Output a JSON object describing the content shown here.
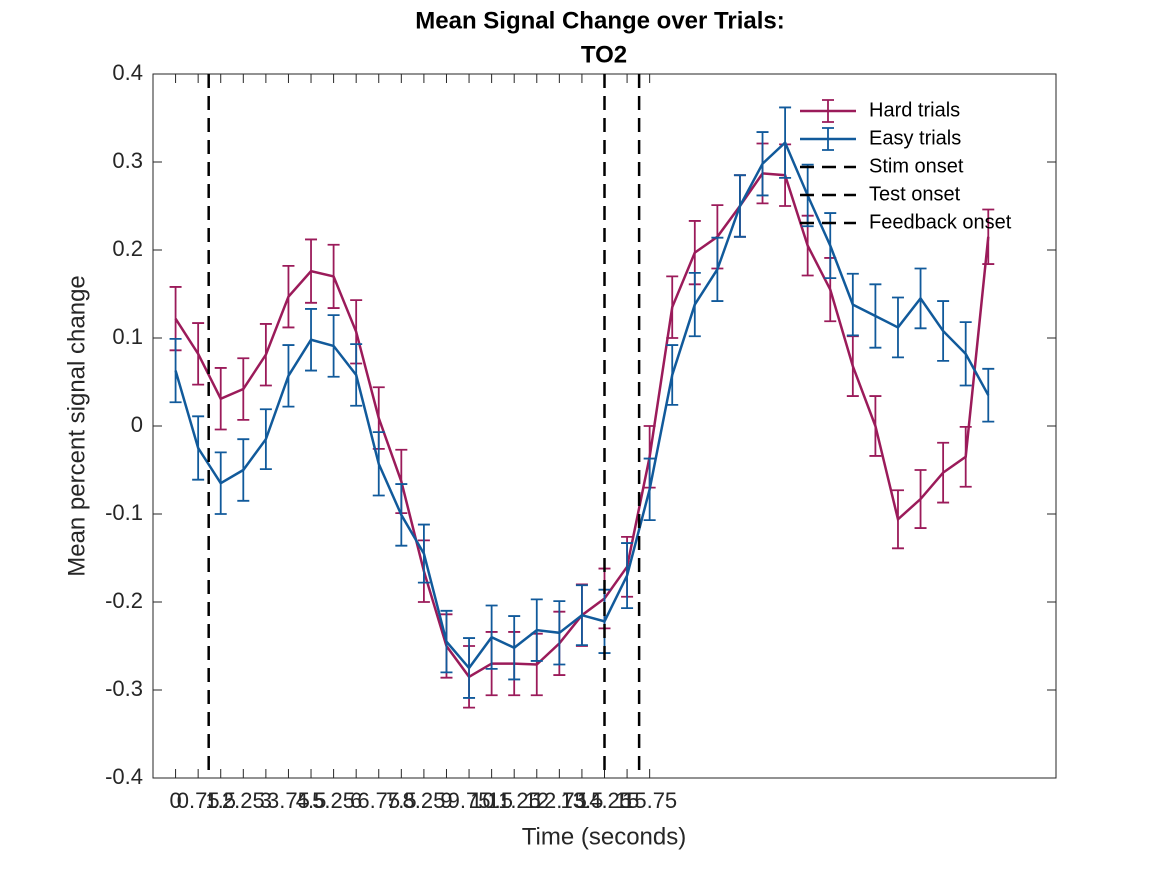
{
  "chart_data": {
    "type": "line",
    "title": [
      "Mean Signal Change over Trials:",
      "TO2"
    ],
    "x_label": "Time (seconds)",
    "y_label": "Mean percent signal change",
    "x": [
      0,
      0.75,
      1.5,
      2.25,
      3,
      3.75,
      4.5,
      5.25,
      6,
      6.75,
      7.5,
      8.25,
      9,
      9.75,
      10.5,
      11.25,
      12,
      12.75,
      13.5,
      14.25,
      15,
      15.75,
      16.5,
      17.25,
      18,
      18.75,
      19.5,
      20.25,
      21,
      21.75,
      22.5,
      23.25,
      24,
      24.75,
      25.5,
      26.25,
      27
    ],
    "series": [
      {
        "name": "Hard trials",
        "color": "#9b1b5a",
        "values": [
          0.122,
          0.082,
          0.031,
          0.042,
          0.081,
          0.147,
          0.176,
          0.17,
          0.107,
          0.009,
          -0.063,
          -0.165,
          -0.25,
          -0.285,
          -0.27,
          -0.27,
          -0.271,
          -0.247,
          -0.215,
          -0.196,
          -0.16,
          -0.035,
          0.135,
          0.197,
          0.215,
          0.25,
          0.287,
          0.285,
          0.205,
          0.155,
          0.068,
          0.0,
          -0.106,
          -0.083,
          -0.053,
          -0.035,
          0.215
        ],
        "errors": [
          0.036,
          0.035,
          0.035,
          0.035,
          0.035,
          0.035,
          0.036,
          0.036,
          0.036,
          0.035,
          0.036,
          0.035,
          0.036,
          0.035,
          0.036,
          0.036,
          0.035,
          0.036,
          0.035,
          0.034,
          0.034,
          0.035,
          0.035,
          0.036,
          0.036,
          0.035,
          0.034,
          0.035,
          0.034,
          0.036,
          0.034,
          0.034,
          0.033,
          0.033,
          0.034,
          0.034,
          0.031
        ]
      },
      {
        "name": "Easy trials",
        "color": "#115a9b",
        "values": [
          0.063,
          -0.025,
          -0.065,
          -0.05,
          -0.015,
          0.057,
          0.098,
          0.091,
          0.058,
          -0.043,
          -0.101,
          -0.145,
          -0.245,
          -0.275,
          -0.24,
          -0.252,
          -0.232,
          -0.235,
          -0.215,
          -0.222,
          -0.17,
          -0.072,
          0.058,
          0.138,
          0.178,
          0.25,
          0.298,
          0.322,
          0.262,
          0.205,
          0.138,
          0.125,
          0.112,
          0.145,
          0.108,
          0.082,
          0.035
        ],
        "errors": [
          0.036,
          0.036,
          0.035,
          0.035,
          0.034,
          0.035,
          0.035,
          0.035,
          0.035,
          0.036,
          0.035,
          0.033,
          0.035,
          0.034,
          0.036,
          0.036,
          0.035,
          0.036,
          0.034,
          0.036,
          0.037,
          0.035,
          0.034,
          0.036,
          0.036,
          0.035,
          0.036,
          0.04,
          0.035,
          0.037,
          0.035,
          0.036,
          0.034,
          0.034,
          0.034,
          0.036,
          0.03
        ]
      }
    ],
    "vlines": [
      {
        "name": "Stim onset",
        "x": 1.1,
        "color": "#000000"
      },
      {
        "name": "Test onset",
        "x": 14.25,
        "color": "#000000"
      },
      {
        "name": "Feedback onset",
        "x": 15.4,
        "color": "#000000"
      }
    ],
    "xlim": [
      -0.75,
      29.25
    ],
    "ylim": [
      -0.4,
      0.4
    ],
    "xticks": [
      0,
      0.75,
      1.5,
      2.25,
      3,
      3.75,
      4.5,
      5.25,
      6,
      6.75,
      7.5,
      8.25,
      9,
      9.75,
      10.5,
      11.25,
      12,
      12.75,
      13.5,
      14.25,
      15,
      15.75
    ],
    "yticks": [
      -0.4,
      -0.3,
      -0.2,
      -0.1,
      0,
      0.1,
      0.2,
      0.3,
      0.4
    ],
    "legend": "top-right"
  }
}
